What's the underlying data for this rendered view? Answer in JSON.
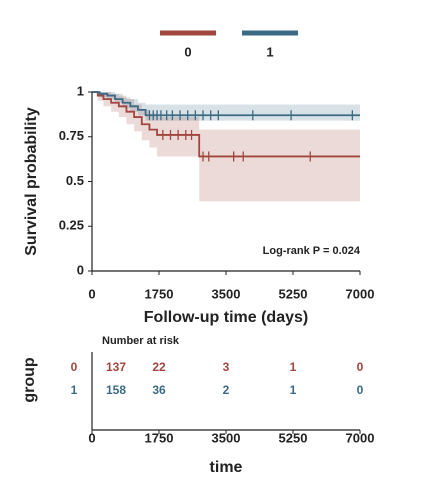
{
  "chart_data": [
    {
      "type": "km",
      "ylabel": "Survival probability",
      "xlabel": "Follow-up time (days)",
      "annotation": "Log-rank P = 0.024",
      "xlim": [
        0,
        7000
      ],
      "xticks": [
        0,
        1750,
        3500,
        5250,
        7000
      ],
      "ylim": [
        0,
        1
      ],
      "yticks": [
        0,
        0.25,
        0.5,
        0.75,
        1
      ],
      "series": [
        {
          "name": "0",
          "color": "#a0463e",
          "x": [
            0,
            150,
            300,
            500,
            700,
            900,
            1100,
            1300,
            1500,
            1700,
            2800,
            7000
          ],
          "values": [
            1,
            0.98,
            0.96,
            0.94,
            0.92,
            0.89,
            0.86,
            0.82,
            0.79,
            0.76,
            0.64,
            0.64
          ],
          "lower": [
            1,
            0.95,
            0.92,
            0.89,
            0.86,
            0.82,
            0.78,
            0.73,
            0.69,
            0.64,
            0.39,
            0.39
          ],
          "upper": [
            1,
            1,
            1,
            0.99,
            0.98,
            0.96,
            0.93,
            0.9,
            0.88,
            0.86,
            0.79,
            0.79
          ],
          "censor_x": [
            1850,
            2050,
            2250,
            2450,
            2600,
            2900,
            3050,
            3700,
            3950,
            5700
          ],
          "censor_values": [
            0.76,
            0.76,
            0.76,
            0.76,
            0.76,
            0.64,
            0.64,
            0.64,
            0.64,
            0.64
          ]
        },
        {
          "name": "1",
          "color": "#3b6a84",
          "x": [
            0,
            200,
            400,
            600,
            800,
            1000,
            1200,
            1400,
            7000
          ],
          "values": [
            1,
            0.99,
            0.98,
            0.96,
            0.94,
            0.92,
            0.9,
            0.87,
            0.87
          ],
          "lower": [
            1,
            0.97,
            0.96,
            0.94,
            0.91,
            0.89,
            0.87,
            0.84,
            0.84
          ],
          "upper": [
            1,
            1,
            1,
            0.99,
            0.97,
            0.96,
            0.94,
            0.93,
            0.93
          ],
          "censor_x": [
            1500,
            1600,
            1700,
            1800,
            1950,
            2100,
            2300,
            2500,
            2700,
            2900,
            3100,
            3300,
            4200,
            5200,
            6800
          ],
          "censor_values": [
            0.87,
            0.87,
            0.87,
            0.87,
            0.87,
            0.87,
            0.87,
            0.87,
            0.87,
            0.87,
            0.87,
            0.87,
            0.87,
            0.87,
            0.87
          ]
        }
      ]
    },
    {
      "type": "risk_table",
      "title": "Number at risk",
      "ylabel": "group",
      "xlabel": "time",
      "xlim": [
        0,
        7000
      ],
      "xticks": [
        0,
        1750,
        3500,
        5250,
        7000
      ],
      "x": [
        0,
        1750,
        3500,
        5250,
        7000
      ],
      "series": [
        {
          "name": "0",
          "color": "#a0463e",
          "values": [
            137,
            22,
            3,
            1,
            0
          ]
        },
        {
          "name": "1",
          "color": "#3b6a84",
          "values": [
            158,
            36,
            2,
            1,
            0
          ]
        }
      ]
    }
  ]
}
